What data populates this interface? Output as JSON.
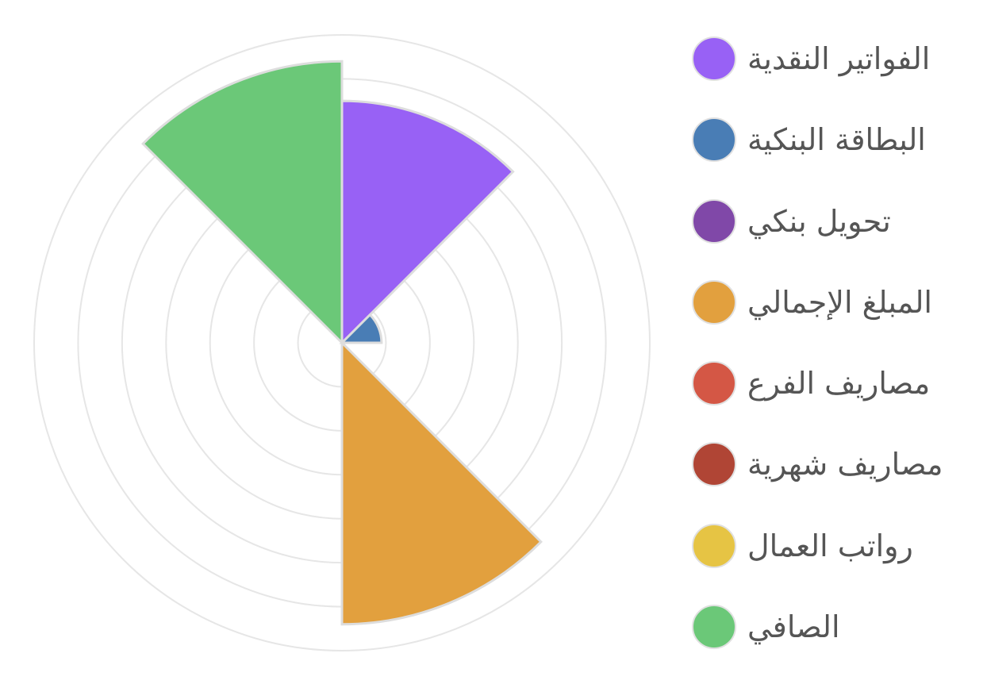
{
  "chart_data": {
    "type": "polarArea",
    "r_max": 7,
    "r_ticks": [
      1,
      2,
      3,
      4,
      5,
      6,
      7
    ],
    "grid": true,
    "legend_position": "right",
    "categories": [
      "الفواتير النقدية",
      "البطاقة البنكية",
      "تحويل بنكي",
      "المبلغ الإجمالي",
      "مصاريف الفرع",
      "مصاريف شهرية",
      "رواتب العمال",
      "الصافي"
    ],
    "values": [
      5.5,
      0.9,
      0,
      6.4,
      0,
      0,
      0,
      6.4
    ],
    "colors": [
      "#9861f5",
      "#497db5",
      "#8048a8",
      "#e2a03e",
      "#d45745",
      "#b04535",
      "#e6c444",
      "#6bc878"
    ]
  }
}
